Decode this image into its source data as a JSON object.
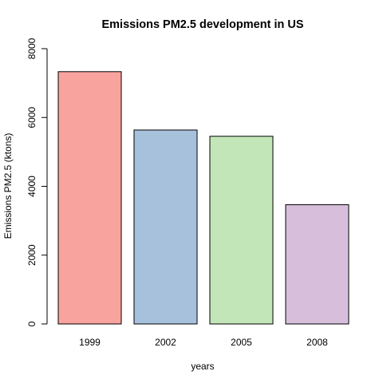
{
  "chart_data": {
    "type": "bar",
    "title": "Emissions PM2.5 development in US",
    "xlabel": "years",
    "ylabel": "Emissions PM2.5 (ktons)",
    "categories": [
      "1999",
      "2002",
      "2005",
      "2008"
    ],
    "values": [
      7332,
      5636,
      5454,
      3465
    ],
    "colors": [
      "#F8A39E",
      "#A7C1DD",
      "#C3E6B9",
      "#D7BFDC"
    ],
    "ylim": [
      0,
      8000
    ],
    "yticks": [
      0,
      2000,
      4000,
      6000,
      8000
    ],
    "grid": false,
    "legend": "none"
  }
}
